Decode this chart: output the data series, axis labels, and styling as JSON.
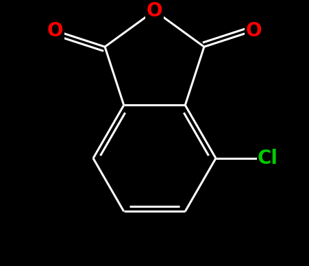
{
  "background_color": "#000000",
  "bond_color": "#ffffff",
  "bond_width": 2.2,
  "atom_colors": {
    "O": "#ff0000",
    "Cl": "#00cc00"
  },
  "font_size_O": 20,
  "font_size_Cl": 20,
  "xlim": [
    -2.6,
    2.6
  ],
  "ylim": [
    -2.8,
    2.4
  ],
  "scale": 1.25
}
